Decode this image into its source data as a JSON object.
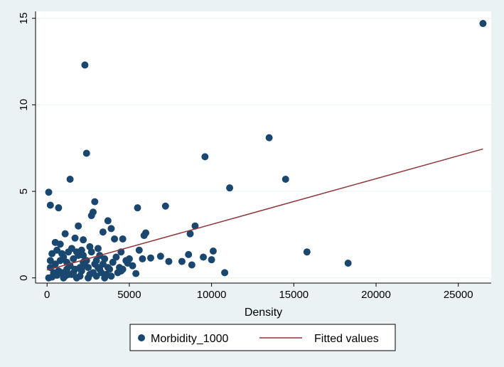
{
  "chart_data": {
    "type": "scatter",
    "title": "",
    "xlabel": "Density",
    "ylabel": "",
    "xlim": [
      -700,
      27000
    ],
    "ylim": [
      -0.3,
      15.4
    ],
    "x_ticks": [
      0,
      5000,
      10000,
      15000,
      20000,
      25000
    ],
    "y_ticks": [
      0,
      5,
      10,
      15
    ],
    "grid": true,
    "legend_position": "bottom",
    "colors": {
      "background": "#eaf2f3",
      "plot_area": "#ffffff",
      "gridline": "#eaf2f3",
      "marker": "#1a476f",
      "fit_line": "#90353b"
    },
    "series": [
      {
        "name": "Morbidity_1000",
        "kind": "scatter",
        "points": [
          [
            26500,
            14.7
          ],
          [
            2300,
            12.3
          ],
          [
            2400,
            7.2
          ],
          [
            13500,
            8.1
          ],
          [
            9600,
            7.0
          ],
          [
            1400,
            5.7
          ],
          [
            14500,
            5.7
          ],
          [
            11100,
            5.2
          ],
          [
            100,
            4.95
          ],
          [
            200,
            4.2
          ],
          [
            700,
            4.05
          ],
          [
            2900,
            4.4
          ],
          [
            7200,
            4.15
          ],
          [
            5500,
            4.05
          ],
          [
            2800,
            3.8
          ],
          [
            2700,
            3.6
          ],
          [
            1900,
            3.0
          ],
          [
            3700,
            3.3
          ],
          [
            3900,
            2.85
          ],
          [
            9000,
            3.0
          ],
          [
            6000,
            2.6
          ],
          [
            5900,
            2.45
          ],
          [
            8700,
            2.55
          ],
          [
            3400,
            2.65
          ],
          [
            1100,
            2.55
          ],
          [
            4100,
            2.25
          ],
          [
            4600,
            2.25
          ],
          [
            15800,
            1.5
          ],
          [
            10100,
            1.55
          ],
          [
            18300,
            0.85
          ],
          [
            10800,
            0.3
          ],
          [
            5400,
            0.25
          ],
          [
            7400,
            0.95
          ],
          [
            8200,
            0.95
          ],
          [
            8800,
            0.75
          ],
          [
            8600,
            1.35
          ],
          [
            9500,
            1.2
          ],
          [
            10000,
            1.05
          ],
          [
            6900,
            1.25
          ],
          [
            6300,
            1.15
          ],
          [
            5800,
            1.1
          ],
          [
            4200,
            1.2
          ],
          [
            4800,
            1.0
          ],
          [
            5000,
            1.1
          ],
          [
            4900,
            0.85
          ],
          [
            4500,
            0.4
          ],
          [
            4400,
            0.6
          ],
          [
            3200,
            0.5
          ],
          [
            3600,
            0.2
          ],
          [
            500,
            2.05
          ],
          [
            800,
            1.95
          ],
          [
            300,
            1.4
          ],
          [
            200,
            1.0
          ],
          [
            200,
            0.6
          ],
          [
            100,
            0.0
          ],
          [
            300,
            0.05
          ],
          [
            600,
            0.15
          ],
          [
            900,
            0.3
          ],
          [
            1200,
            0.5
          ],
          [
            1500,
            0.2
          ],
          [
            1800,
            0.0
          ],
          [
            2100,
            0.4
          ],
          [
            2500,
            0.6
          ],
          [
            2900,
            0.8
          ],
          [
            3300,
            0.3
          ],
          [
            3800,
            0.5
          ],
          [
            1000,
            1.2
          ],
          [
            1600,
            1.1
          ],
          [
            2200,
            0.9
          ],
          [
            2700,
            1.5
          ],
          [
            3100,
            1.7
          ],
          [
            3500,
            1.1
          ],
          [
            3000,
            0.1
          ],
          [
            2600,
            0.2
          ],
          [
            2000,
            0.1
          ],
          [
            1300,
            1.5
          ],
          [
            1700,
            2.3
          ],
          [
            2200,
            2.2
          ],
          [
            500,
            0.8
          ],
          [
            700,
            0.4
          ],
          [
            1400,
            0.7
          ],
          [
            1900,
            1.3
          ],
          [
            2400,
            1.0
          ],
          [
            2800,
            0.3
          ],
          [
            3400,
            0.8
          ],
          [
            3900,
            0.1
          ],
          [
            4300,
            0.3
          ],
          [
            800,
            1.0
          ],
          [
            1100,
            0.1
          ],
          [
            1700,
            0.5
          ],
          [
            2300,
            0.7
          ],
          [
            2600,
            1.8
          ],
          [
            3000,
            1.0
          ],
          [
            3700,
            0.6
          ],
          [
            4000,
            0.9
          ],
          [
            4500,
            1.5
          ],
          [
            400,
            0.3
          ],
          [
            1500,
            1.7
          ],
          [
            2100,
            1.6
          ],
          [
            1200,
            0.9
          ],
          [
            600,
            1.6
          ],
          [
            2000,
            0.6
          ],
          [
            3200,
            1.3
          ],
          [
            5200,
            0.7
          ],
          [
            1000,
            0.0
          ],
          [
            1600,
            0.3
          ],
          [
            2500,
            0.0
          ],
          [
            3500,
            0.0
          ],
          [
            4600,
            0.5
          ],
          [
            5600,
            1.6
          ],
          [
            900,
            1.4
          ],
          [
            3100,
            0.6
          ],
          [
            2200,
            1.3
          ],
          [
            1800,
            1.5
          ],
          [
            1300,
            0.2
          ]
        ]
      },
      {
        "name": "Fitted values",
        "kind": "line",
        "x": [
          0,
          26500
        ],
        "y": [
          0.45,
          7.45
        ]
      }
    ]
  }
}
